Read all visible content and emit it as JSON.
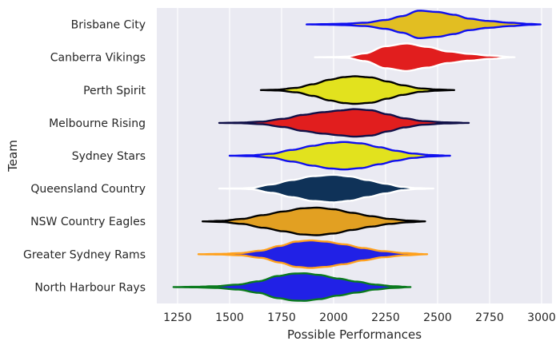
{
  "chart_data": {
    "type": "violin",
    "orientation": "horizontal",
    "xlabel": "Possible Performances",
    "ylabel": "Team",
    "xlim": [
      1150,
      3050
    ],
    "xticks": [
      1250,
      1500,
      1750,
      2000,
      2250,
      2500,
      2750,
      3000
    ],
    "grid": true,
    "style": "seaborn-darkgrid",
    "categories": [
      "Brisbane City",
      "Canberra Vikings",
      "Perth Spirit",
      "Melbourne Rising",
      "Sydney Stars",
      "Queensland Country",
      "NSW Country Eagles",
      "Greater Sydney Rams",
      "North Harbour Rays"
    ],
    "series": [
      {
        "name": "Brisbane City",
        "min": 1870,
        "max": 2995,
        "median": 2410,
        "fill": "#E2BE22",
        "edge": "#1010EE",
        "profile": [
          [
            1870,
            0.0
          ],
          [
            1950,
            0.02
          ],
          [
            2050,
            0.05
          ],
          [
            2150,
            0.12
          ],
          [
            2250,
            0.32
          ],
          [
            2330,
            0.6
          ],
          [
            2410,
            1.0
          ],
          [
            2500,
            0.9
          ],
          [
            2580,
            0.7
          ],
          [
            2650,
            0.42
          ],
          [
            2740,
            0.25
          ],
          [
            2850,
            0.12
          ],
          [
            2950,
            0.03
          ],
          [
            2995,
            0.0
          ]
        ]
      },
      {
        "name": "Canberra Vikings",
        "min": 1910,
        "max": 2870,
        "median": 2350,
        "fill": "#E11E1E",
        "edge": "#FFFFFF",
        "profile": [
          [
            1910,
            0.0
          ],
          [
            1990,
            0.01
          ],
          [
            2060,
            0.04
          ],
          [
            2150,
            0.28
          ],
          [
            2250,
            0.8
          ],
          [
            2350,
            1.0
          ],
          [
            2450,
            0.75
          ],
          [
            2550,
            0.42
          ],
          [
            2650,
            0.25
          ],
          [
            2750,
            0.12
          ],
          [
            2870,
            0.0
          ]
        ]
      },
      {
        "name": "Perth Spirit",
        "min": 1650,
        "max": 2580,
        "median": 2100,
        "fill": "#E2E21E",
        "edge": "#000000",
        "profile": [
          [
            1650,
            0.0
          ],
          [
            1730,
            0.03
          ],
          [
            1820,
            0.16
          ],
          [
            1900,
            0.42
          ],
          [
            1980,
            0.75
          ],
          [
            2050,
            0.94
          ],
          [
            2100,
            1.0
          ],
          [
            2180,
            0.92
          ],
          [
            2260,
            0.62
          ],
          [
            2330,
            0.35
          ],
          [
            2420,
            0.12
          ],
          [
            2500,
            0.04
          ],
          [
            2580,
            0.0
          ]
        ]
      },
      {
        "name": "Melbourne Rising",
        "min": 1450,
        "max": 2650,
        "median": 2100,
        "fill": "#E11E1E",
        "edge": "#101048",
        "profile": [
          [
            1450,
            0.0
          ],
          [
            1550,
            0.02
          ],
          [
            1650,
            0.09
          ],
          [
            1760,
            0.3
          ],
          [
            1850,
            0.58
          ],
          [
            1950,
            0.78
          ],
          [
            2030,
            0.9
          ],
          [
            2100,
            1.0
          ],
          [
            2180,
            0.92
          ],
          [
            2260,
            0.62
          ],
          [
            2340,
            0.33
          ],
          [
            2430,
            0.13
          ],
          [
            2540,
            0.04
          ],
          [
            2650,
            0.0
          ]
        ]
      },
      {
        "name": "Sydney Stars",
        "min": 1500,
        "max": 2560,
        "median": 2050,
        "fill": "#E2E21E",
        "edge": "#1010EE",
        "profile": [
          [
            1500,
            0.0
          ],
          [
            1600,
            0.03
          ],
          [
            1700,
            0.14
          ],
          [
            1800,
            0.42
          ],
          [
            1900,
            0.72
          ],
          [
            1980,
            0.92
          ],
          [
            2050,
            1.0
          ],
          [
            2130,
            0.9
          ],
          [
            2220,
            0.62
          ],
          [
            2300,
            0.36
          ],
          [
            2380,
            0.16
          ],
          [
            2470,
            0.05
          ],
          [
            2560,
            0.0
          ]
        ]
      },
      {
        "name": "Queensland Country",
        "min": 1450,
        "max": 2480,
        "median": 2000,
        "fill": "#0F3258",
        "edge": "#FFFFFF",
        "profile": [
          [
            1450,
            0.0
          ],
          [
            1550,
            0.01
          ],
          [
            1600,
            0.04
          ],
          [
            1700,
            0.3
          ],
          [
            1800,
            0.62
          ],
          [
            1900,
            0.9
          ],
          [
            2000,
            1.0
          ],
          [
            2080,
            0.88
          ],
          [
            2160,
            0.62
          ],
          [
            2250,
            0.35
          ],
          [
            2330,
            0.12
          ],
          [
            2400,
            0.03
          ],
          [
            2480,
            0.0
          ]
        ]
      },
      {
        "name": "NSW Country Eagles",
        "min": 1370,
        "max": 2440,
        "median": 1900,
        "fill": "#E2A022",
        "edge": "#000000",
        "profile": [
          [
            1370,
            0.0
          ],
          [
            1460,
            0.04
          ],
          [
            1560,
            0.18
          ],
          [
            1660,
            0.46
          ],
          [
            1760,
            0.72
          ],
          [
            1850,
            0.95
          ],
          [
            1920,
            1.0
          ],
          [
            2000,
            0.88
          ],
          [
            2090,
            0.62
          ],
          [
            2180,
            0.38
          ],
          [
            2270,
            0.18
          ],
          [
            2360,
            0.06
          ],
          [
            2440,
            0.0
          ]
        ]
      },
      {
        "name": "Greater Sydney Rams",
        "min": 1350,
        "max": 2450,
        "median": 1890,
        "fill": "#2121E6",
        "edge": "#FFA11D",
        "profile": [
          [
            1350,
            0.0
          ],
          [
            1450,
            0.02
          ],
          [
            1550,
            0.08
          ],
          [
            1650,
            0.26
          ],
          [
            1740,
            0.6
          ],
          [
            1820,
            0.92
          ],
          [
            1890,
            1.0
          ],
          [
            1960,
            0.92
          ],
          [
            2050,
            0.72
          ],
          [
            2140,
            0.45
          ],
          [
            2240,
            0.22
          ],
          [
            2340,
            0.08
          ],
          [
            2450,
            0.0
          ]
        ]
      },
      {
        "name": "North Harbour Rays",
        "min": 1230,
        "max": 2370,
        "median": 1850,
        "fill": "#2121E6",
        "edge": "#0B7A1E",
        "profile": [
          [
            1230,
            0.0
          ],
          [
            1330,
            0.02
          ],
          [
            1430,
            0.06
          ],
          [
            1540,
            0.18
          ],
          [
            1640,
            0.42
          ],
          [
            1730,
            0.8
          ],
          [
            1810,
            0.98
          ],
          [
            1860,
            1.0
          ],
          [
            1930,
            0.88
          ],
          [
            2020,
            0.62
          ],
          [
            2110,
            0.4
          ],
          [
            2200,
            0.18
          ],
          [
            2290,
            0.06
          ],
          [
            2370,
            0.0
          ]
        ]
      }
    ]
  }
}
